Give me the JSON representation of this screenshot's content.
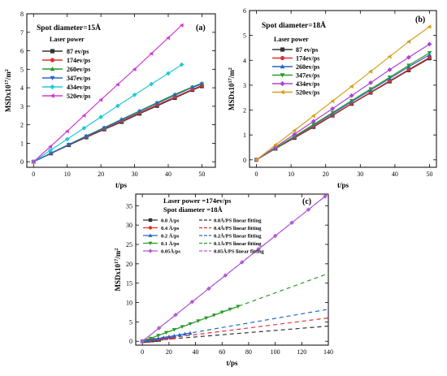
{
  "chart_data": [
    {
      "type": "line",
      "panel_label": "(a)",
      "annotation": "Spot diameter=15Å",
      "xlabel": "t/ps",
      "ylabel_main": "MSDx10",
      "ylabel_exp": "17",
      "ylabel_tail": "/m",
      "ylabel_exp2": "2",
      "xlim": [
        -2,
        54
      ],
      "ylim": [
        -0.3,
        8
      ],
      "xticks": [
        0,
        10,
        20,
        30,
        40,
        50
      ],
      "yticks": [
        0,
        1,
        2,
        3,
        4,
        5,
        6,
        7,
        8
      ],
      "legend_title": "Laser power",
      "legend_position": "upper-left",
      "series": [
        {
          "name": "87 ev/ps",
          "color": "#333333",
          "marker": "square",
          "x": [
            0,
            5.2,
            10.5,
            15.7,
            21,
            26.2,
            31.5,
            36.7,
            42,
            47.2,
            50
          ],
          "y": [
            0,
            0.45,
            0.9,
            1.32,
            1.75,
            2.15,
            2.6,
            3.02,
            3.45,
            3.88,
            4.08
          ]
        },
        {
          "name": "174ev/ps",
          "color": "#e03030",
          "marker": "circle",
          "x": [
            0,
            5.2,
            10.5,
            15.7,
            21,
            26.2,
            31.5,
            36.7,
            42,
            47.2,
            50
          ],
          "y": [
            0,
            0.45,
            0.92,
            1.35,
            1.78,
            2.2,
            2.65,
            3.08,
            3.5,
            3.92,
            4.12
          ]
        },
        {
          "name": "260ev/ps",
          "color": "#2c9a2c",
          "marker": "triangle-up",
          "x": [
            0,
            5.2,
            10.5,
            15.7,
            21,
            26.2,
            31.5,
            36.7,
            42,
            47.2,
            50
          ],
          "y": [
            0,
            0.47,
            0.94,
            1.4,
            1.85,
            2.3,
            2.75,
            3.2,
            3.65,
            4.05,
            4.25
          ]
        },
        {
          "name": "347ev/ps",
          "color": "#2466c9",
          "marker": "triangle-down",
          "x": [
            0,
            5.2,
            10.5,
            15.7,
            21,
            26.2,
            31.5,
            36.7,
            42,
            47.2,
            50
          ],
          "y": [
            0,
            0.46,
            0.93,
            1.38,
            1.82,
            2.26,
            2.72,
            3.16,
            3.6,
            4.02,
            4.2
          ]
        },
        {
          "name": "434ev/ps",
          "color": "#25c8d8",
          "marker": "diamond",
          "x": [
            0,
            5,
            10,
            15,
            20,
            25,
            30,
            35,
            40,
            44
          ],
          "y": [
            0,
            0.62,
            1.22,
            1.82,
            2.42,
            3.02,
            3.62,
            4.2,
            4.78,
            5.25
          ]
        },
        {
          "name": "520ev/ps",
          "color": "#d23ad2",
          "marker": "triangle-left",
          "x": [
            0,
            5,
            10,
            15,
            20,
            25,
            30,
            35,
            40,
            44
          ],
          "y": [
            0,
            0.82,
            1.65,
            2.5,
            3.35,
            4.18,
            5.0,
            5.85,
            6.7,
            7.38
          ]
        }
      ]
    },
    {
      "type": "line",
      "panel_label": "(b)",
      "annotation": "Spot diameter=18Å",
      "xlabel": "t/ps",
      "ylabel_main": "MSDx10",
      "ylabel_exp": "17",
      "ylabel_tail": "/m",
      "ylabel_exp2": "2",
      "xlim": [
        -2,
        52
      ],
      "ylim": [
        -0.3,
        6
      ],
      "xticks": [
        0,
        10,
        20,
        30,
        40,
        50
      ],
      "yticks": [
        0,
        1,
        2,
        3,
        4,
        5,
        6
      ],
      "legend_title": "Laser power",
      "legend_position": "upper-left",
      "series": [
        {
          "name": "87 ev/ps",
          "color": "#333333",
          "marker": "square",
          "x": [
            0,
            5.5,
            11,
            16.5,
            22,
            27.5,
            33,
            38.5,
            44,
            50
          ],
          "y": [
            0,
            0.45,
            0.88,
            1.32,
            1.78,
            2.25,
            2.7,
            3.15,
            3.6,
            4.08
          ]
        },
        {
          "name": "174ev/ps",
          "color": "#e03030",
          "marker": "circle",
          "x": [
            0,
            5.5,
            11,
            16.5,
            22,
            27.5,
            33,
            38.5,
            44,
            50
          ],
          "y": [
            0,
            0.46,
            0.9,
            1.35,
            1.8,
            2.27,
            2.72,
            3.18,
            3.63,
            4.12
          ]
        },
        {
          "name": "260ev/ps",
          "color": "#2466c9",
          "marker": "triangle-up",
          "x": [
            0,
            5.5,
            11,
            16.5,
            22,
            27.5,
            33,
            38.5,
            44,
            50
          ],
          "y": [
            0,
            0.47,
            0.93,
            1.4,
            1.86,
            2.34,
            2.8,
            3.27,
            3.74,
            4.22
          ]
        },
        {
          "name": "347ev/ps",
          "color": "#2c9a2c",
          "marker": "triangle-down",
          "x": [
            0,
            5.5,
            11,
            16.5,
            22,
            27.5,
            33,
            38.5,
            44,
            50
          ],
          "y": [
            0,
            0.48,
            0.95,
            1.42,
            1.9,
            2.38,
            2.85,
            3.32,
            3.8,
            4.3
          ]
        },
        {
          "name": "434ev/ps",
          "color": "#b040d8",
          "marker": "diamond",
          "x": [
            0,
            5.5,
            11,
            16.5,
            22,
            27.5,
            33,
            38.5,
            44,
            50
          ],
          "y": [
            0,
            0.52,
            1.03,
            1.55,
            2.06,
            2.58,
            3.1,
            3.62,
            4.12,
            4.65
          ]
        },
        {
          "name": "520ev/ps",
          "color": "#d4a017",
          "marker": "triangle-left",
          "x": [
            0,
            5.5,
            11,
            16.5,
            22,
            27.5,
            33,
            38.5,
            44,
            50
          ],
          "y": [
            0,
            0.6,
            1.18,
            1.77,
            2.36,
            2.95,
            3.55,
            4.15,
            4.75,
            5.35
          ]
        }
      ]
    },
    {
      "type": "line",
      "panel_label": "(c)",
      "annotation_lines": [
        "Laser power =174ev/ps",
        "Spot diameter =18Å"
      ],
      "xlabel": "t/ps",
      "ylabel_main": "MSDx10",
      "ylabel_exp": "17",
      "ylabel_tail": "/m",
      "ylabel_exp2": "2",
      "xlim": [
        -5,
        140
      ],
      "ylim": [
        -1,
        38
      ],
      "xticks": [
        0,
        20,
        40,
        60,
        80,
        100,
        120,
        140
      ],
      "yticks": [
        0,
        5,
        10,
        15,
        20,
        25,
        30,
        35
      ],
      "legend_position": "upper-left",
      "series": [
        {
          "name": "0.8 Å/ps",
          "fit_name": "0.8Å/PS linear fitting",
          "color": "#333333",
          "marker": "square",
          "x": [
            0,
            2.5,
            5,
            7.5,
            10,
            12.5
          ],
          "y": [
            0,
            0.08,
            0.15,
            0.22,
            0.3,
            0.37
          ],
          "fit_slope": 0.028
        },
        {
          "name": "0.4 Å/ps",
          "fit_name": "0.4Å/PS linear fitting",
          "color": "#e03030",
          "marker": "circle",
          "x": [
            0,
            3,
            6,
            9,
            12,
            15,
            18,
            21,
            24
          ],
          "y": [
            0,
            0.13,
            0.26,
            0.38,
            0.5,
            0.63,
            0.76,
            0.88,
            1.0
          ],
          "fit_slope": 0.043
        },
        {
          "name": "0.2 Å/ps",
          "fit_name": "0.2Å/PS linear fitting",
          "color": "#2466c9",
          "marker": "triangle-up",
          "x": [
            0,
            4,
            8,
            12,
            16,
            20,
            24,
            28,
            32,
            36
          ],
          "y": [
            0,
            0.24,
            0.47,
            0.7,
            0.94,
            1.17,
            1.4,
            1.64,
            1.87,
            2.1
          ],
          "fit_slope": 0.059
        },
        {
          "name": "0.1 Å/ps",
          "fit_name": "0.1Å/PS linear fitting",
          "color": "#2c9a2c",
          "marker": "triangle-down",
          "x": [
            0,
            6,
            12,
            18,
            24,
            30,
            36,
            42,
            48,
            54,
            60,
            66,
            72
          ],
          "y": [
            0,
            0.75,
            1.5,
            2.25,
            3.0,
            3.75,
            4.5,
            5.25,
            6.0,
            6.75,
            7.5,
            8.25,
            9.0
          ],
          "fit_slope": 0.125
        },
        {
          "name": "0.05Å/ps",
          "fit_name": "0.05Å/PS linear fitting",
          "color": "#b05bd8",
          "marker": "diamond",
          "x": [
            0,
            12.5,
            25,
            37.5,
            50,
            62.5,
            75,
            87.5,
            100,
            112.5,
            125,
            137.5
          ],
          "y": [
            0,
            3.4,
            6.8,
            10.2,
            13.6,
            17.0,
            20.4,
            23.8,
            27.2,
            30.6,
            34.0,
            37.4
          ],
          "fit_slope": 0.272
        }
      ]
    }
  ]
}
